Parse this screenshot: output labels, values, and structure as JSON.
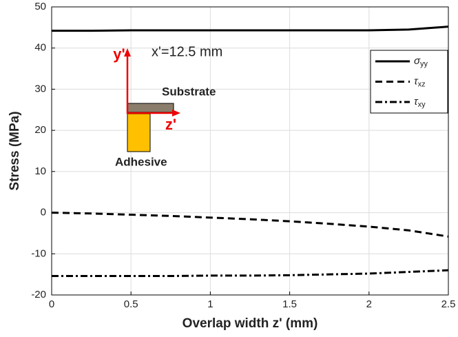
{
  "chart_data": {
    "type": "line",
    "xlabel": "Overlap width z' (mm)",
    "ylabel": "Stress (MPa)",
    "x": [
      0,
      0.25,
      0.5,
      0.75,
      1,
      1.25,
      1.5,
      1.75,
      2,
      2.25,
      2.5
    ],
    "series": [
      {
        "name": "σyy",
        "color": "#000000",
        "dash": "solid",
        "values": [
          44.2,
          44.2,
          44.3,
          44.3,
          44.3,
          44.3,
          44.3,
          44.3,
          44.3,
          44.5,
          45.2
        ]
      },
      {
        "name": "τxz",
        "color": "#000000",
        "dash": "dashed",
        "values": [
          0,
          -0.2,
          -0.5,
          -0.8,
          -1.2,
          -1.6,
          -2.1,
          -2.7,
          -3.4,
          -4.3,
          -5.8
        ]
      },
      {
        "name": "τxy",
        "color": "#000000",
        "dash": "dashdot",
        "values": [
          -15.4,
          -15.4,
          -15.4,
          -15.4,
          -15.3,
          -15.3,
          -15.2,
          -15.0,
          -14.8,
          -14.4,
          -14.0
        ]
      }
    ],
    "xlim": [
      0,
      2.5
    ],
    "xticks": [
      0,
      0.5,
      1,
      1.5,
      2,
      2.5
    ],
    "ylim": [
      -20,
      50
    ],
    "yticks": [
      -20,
      -10,
      0,
      10,
      20,
      30,
      40,
      50
    ],
    "grid": true,
    "legend": "upper right",
    "annotations": {
      "condition": "x'=12.5 mm",
      "y_axis": "y'",
      "z_axis": "z'",
      "substrate": "Substrate",
      "adhesive": "Adhesive"
    }
  }
}
